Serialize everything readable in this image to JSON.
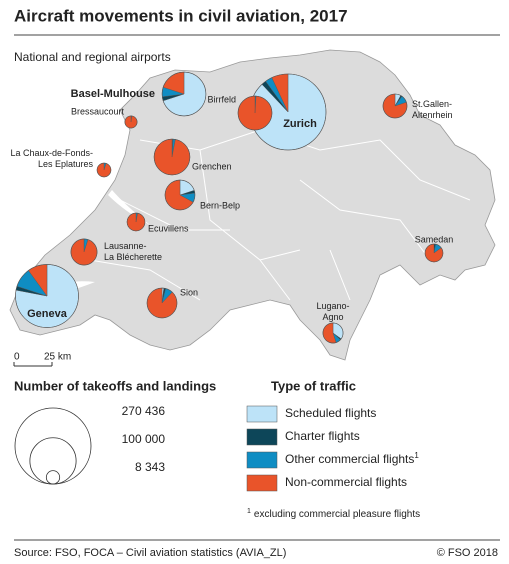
{
  "chart_data": {
    "type": "pie-map",
    "title": "Aircraft movements in civil aviation, 2017",
    "subtitle": "National and regional airports",
    "types": [
      {
        "name": "Scheduled flights",
        "color": "#bde3f8"
      },
      {
        "name": "Charter flights",
        "color": "#0d4659"
      },
      {
        "name": "Other commercial flights",
        "color": "#0f8dc3",
        "note": "1"
      },
      {
        "name": "Non-commercial flights",
        "color": "#e9542a"
      }
    ],
    "airports": [
      {
        "label": [
          "Zurich"
        ],
        "total": 270436,
        "shares": [
          88,
          2,
          3,
          7
        ]
      },
      {
        "label": [
          "Geneva"
        ],
        "total": 186000,
        "shares": [
          78,
          2,
          10,
          10
        ]
      },
      {
        "label": [
          "Basel-Mulhouse"
        ],
        "total": 90000,
        "shares": [
          70,
          3,
          7,
          20
        ]
      },
      {
        "label": [
          "Bern-Belp"
        ],
        "total": 42000,
        "shares": [
          20,
          3,
          10,
          67
        ]
      },
      {
        "label": [
          "Grenchen"
        ],
        "total": 60000,
        "shares": [
          0.5,
          0.5,
          2,
          97
        ]
      },
      {
        "label": [
          "Birrfeld"
        ],
        "total": 54000,
        "shares": [
          0,
          0,
          1,
          99
        ]
      },
      {
        "label": [
          "Lausanne-",
          "La Blécherette"
        ],
        "total": 32000,
        "shares": [
          0,
          0,
          5,
          95
        ]
      },
      {
        "label": [
          "Sion"
        ],
        "total": 42000,
        "shares": [
          2,
          2,
          8,
          88
        ]
      },
      {
        "label": [
          "St.Gallen-",
          "Altenrhein"
        ],
        "total": 27000,
        "shares": [
          8,
          2,
          10,
          80
        ]
      },
      {
        "label": [
          "Lugano-",
          "Agno"
        ],
        "total": 19000,
        "shares": [
          35,
          2,
          8,
          55
        ]
      },
      {
        "label": [
          "Ecuvillens"
        ],
        "total": 15000,
        "shares": [
          0,
          0,
          3,
          97
        ]
      },
      {
        "label": [
          "Samedan"
        ],
        "total": 15000,
        "shares": [
          0,
          3,
          12,
          85
        ]
      },
      {
        "label": [
          "Bressaucourt"
        ],
        "total": 7000,
        "shares": [
          0,
          0,
          2,
          98
        ]
      },
      {
        "label": [
          "La Chaux-de-Fonds-",
          "Les Eplatures"
        ],
        "total": 9000,
        "shares": [
          0,
          0,
          5,
          95
        ]
      }
    ],
    "size_legend": {
      "title": "Number of takeoffs and landings",
      "ticks": [
        {
          "value": 270436,
          "label": "270 436"
        },
        {
          "value": 100000,
          "label": "100 000"
        },
        {
          "value": 8343,
          "label": "8 343"
        }
      ]
    },
    "type_legend_title": "Type of traffic",
    "scale_bar": [
      0,
      {
        "value": 25,
        "label": "25 km"
      }
    ],
    "footnote": {
      "mark": "1",
      "text": "excluding commercial pleasure flights"
    },
    "source": "Source: FSO, FOCA – Civil aviation statistics (AVIA_ZL)",
    "copyright": "© FSO 2018"
  }
}
